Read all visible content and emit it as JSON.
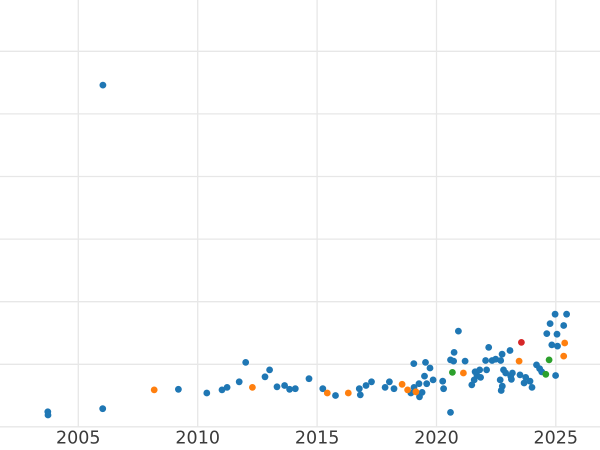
{
  "chart_data": {
    "type": "scatter",
    "title": "",
    "xlabel": "",
    "ylabel": "",
    "legend": "none",
    "grid": true,
    "background_color": "#ffffff",
    "grid_color": "#e7e7e7",
    "tick_label_color": "#3b3b3b",
    "xlim": [
      2001.72,
      2026.85
    ],
    "ylim": [
      -0.37,
      6.82
    ],
    "x_ticks": [
      {
        "value": 2005,
        "label": "2005"
      },
      {
        "value": 2010,
        "label": "2010"
      },
      {
        "value": 2015,
        "label": "2015"
      },
      {
        "value": 2020,
        "label": "2020"
      },
      {
        "value": 2025,
        "label": "2025"
      }
    ],
    "y_axis_labels_visible": false,
    "y_gridlines": [
      0,
      1,
      2,
      3,
      4,
      5,
      6
    ],
    "series": [
      {
        "name": "blue",
        "color": "#1f77b4",
        "points": [
          [
            2003.72,
            0.24
          ],
          [
            2003.73,
            0.19
          ],
          [
            2006.02,
            0.29
          ],
          [
            2006.03,
            5.46
          ],
          [
            2009.19,
            0.6
          ],
          [
            2010.38,
            0.54
          ],
          [
            2011.02,
            0.59
          ],
          [
            2011.23,
            0.63
          ],
          [
            2011.74,
            0.72
          ],
          [
            2012.01,
            1.03
          ],
          [
            2012.82,
            0.8
          ],
          [
            2013.01,
            0.91
          ],
          [
            2013.32,
            0.64
          ],
          [
            2013.64,
            0.66
          ],
          [
            2013.85,
            0.6
          ],
          [
            2014.09,
            0.61
          ],
          [
            2014.66,
            0.77
          ],
          [
            2015.24,
            0.61
          ],
          [
            2015.77,
            0.5
          ],
          [
            2016.77,
            0.61
          ],
          [
            2016.81,
            0.51
          ],
          [
            2017.05,
            0.66
          ],
          [
            2017.28,
            0.72
          ],
          [
            2017.85,
            0.63
          ],
          [
            2018.03,
            0.72
          ],
          [
            2018.22,
            0.61
          ],
          [
            2018.93,
            0.54
          ],
          [
            2019.06,
            0.63
          ],
          [
            2019.29,
            0.48
          ],
          [
            2019.4,
            0.55
          ],
          [
            2019.05,
            1.01
          ],
          [
            2019.54,
            1.03
          ],
          [
            2019.73,
            0.94
          ],
          [
            2019.5,
            0.81
          ],
          [
            2019.27,
            0.69
          ],
          [
            2019.59,
            0.69
          ],
          [
            2019.86,
            0.75
          ],
          [
            2020.26,
            0.73
          ],
          [
            2020.3,
            0.61
          ],
          [
            2020.59,
            1.07
          ],
          [
            2020.72,
            1.05
          ],
          [
            2020.74,
            1.19
          ],
          [
            2020.92,
            1.53
          ],
          [
            2021.2,
            1.05
          ],
          [
            2020.59,
            0.23
          ],
          [
            2021.48,
            0.67
          ],
          [
            2021.58,
            0.75
          ],
          [
            2021.7,
            0.82
          ],
          [
            2021.85,
            0.79
          ],
          [
            2021.62,
            0.88
          ],
          [
            2021.81,
            0.91
          ],
          [
            2022.06,
            1.06
          ],
          [
            2022.1,
            0.91
          ],
          [
            2022.19,
            1.27
          ],
          [
            2022.33,
            1.06
          ],
          [
            2022.48,
            1.08
          ],
          [
            2022.69,
            1.06
          ],
          [
            2022.75,
            1.16
          ],
          [
            2022.81,
            0.91
          ],
          [
            2022.67,
            0.75
          ],
          [
            2022.76,
            0.65
          ],
          [
            2022.71,
            0.58
          ],
          [
            2023.08,
            1.22
          ],
          [
            2023.11,
            0.81
          ],
          [
            2022.9,
            0.86
          ],
          [
            2023.18,
            0.86
          ],
          [
            2023.14,
            0.76
          ],
          [
            2023.5,
            0.83
          ],
          [
            2023.74,
            0.79
          ],
          [
            2023.67,
            0.7
          ],
          [
            2023.92,
            0.73
          ],
          [
            2024.0,
            0.63
          ],
          [
            2024.19,
            0.99
          ],
          [
            2024.32,
            0.93
          ],
          [
            2024.41,
            0.88
          ],
          [
            2024.99,
            0.82
          ],
          [
            2024.62,
            1.49
          ],
          [
            2024.76,
            1.65
          ],
          [
            2024.83,
            1.31
          ],
          [
            2024.97,
            1.8
          ],
          [
            2025.05,
            1.48
          ],
          [
            2025.07,
            1.29
          ],
          [
            2025.33,
            1.62
          ],
          [
            2025.45,
            1.8
          ]
        ]
      },
      {
        "name": "orange",
        "color": "#ff7f0e",
        "points": [
          [
            2008.18,
            0.59
          ],
          [
            2012.29,
            0.63
          ],
          [
            2015.43,
            0.54
          ],
          [
            2016.31,
            0.54
          ],
          [
            2018.56,
            0.68
          ],
          [
            2018.79,
            0.59
          ],
          [
            2019.14,
            0.56
          ],
          [
            2021.13,
            0.86
          ],
          [
            2023.46,
            1.05
          ],
          [
            2025.37,
            1.34
          ],
          [
            2025.33,
            1.13
          ]
        ]
      },
      {
        "name": "green",
        "color": "#2ca02c",
        "points": [
          [
            2020.67,
            0.87
          ],
          [
            2024.58,
            0.84
          ],
          [
            2024.72,
            1.07
          ]
        ]
      },
      {
        "name": "red",
        "color": "#d62728",
        "points": [
          [
            2023.56,
            1.35
          ]
        ]
      }
    ]
  }
}
